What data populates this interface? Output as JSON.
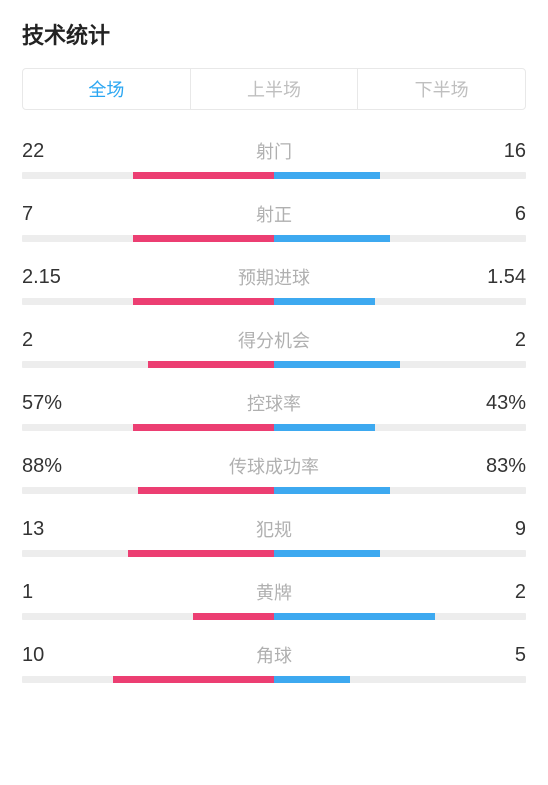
{
  "title": "技术统计",
  "colors": {
    "home": "#ec3e72",
    "away": "#3da9f0",
    "track": "#ededed",
    "text": "#333333",
    "label": "#b0b0b0",
    "tab_active": "#2aa6f2",
    "tab_inactive": "#bfbfbf"
  },
  "tabs": [
    {
      "label": "全场",
      "active": true
    },
    {
      "label": "上半场",
      "active": false
    },
    {
      "label": "下半场",
      "active": false
    }
  ],
  "bar_half_max_pct": 50,
  "stats": [
    {
      "label": "射门",
      "home": "22",
      "away": "16",
      "home_pct": 28,
      "away_pct": 21
    },
    {
      "label": "射正",
      "home": "7",
      "away": "6",
      "home_pct": 28,
      "away_pct": 23
    },
    {
      "label": "预期进球",
      "home": "2.15",
      "away": "1.54",
      "home_pct": 28,
      "away_pct": 20
    },
    {
      "label": "得分机会",
      "home": "2",
      "away": "2",
      "home_pct": 25,
      "away_pct": 25
    },
    {
      "label": "控球率",
      "home": "57%",
      "away": "43%",
      "home_pct": 28,
      "away_pct": 20
    },
    {
      "label": "传球成功率",
      "home": "88%",
      "away": "83%",
      "home_pct": 27,
      "away_pct": 23
    },
    {
      "label": "犯规",
      "home": "13",
      "away": "9",
      "home_pct": 29,
      "away_pct": 21
    },
    {
      "label": "黄牌",
      "home": "1",
      "away": "2",
      "home_pct": 16,
      "away_pct": 32
    },
    {
      "label": "角球",
      "home": "10",
      "away": "5",
      "home_pct": 32,
      "away_pct": 15
    }
  ]
}
